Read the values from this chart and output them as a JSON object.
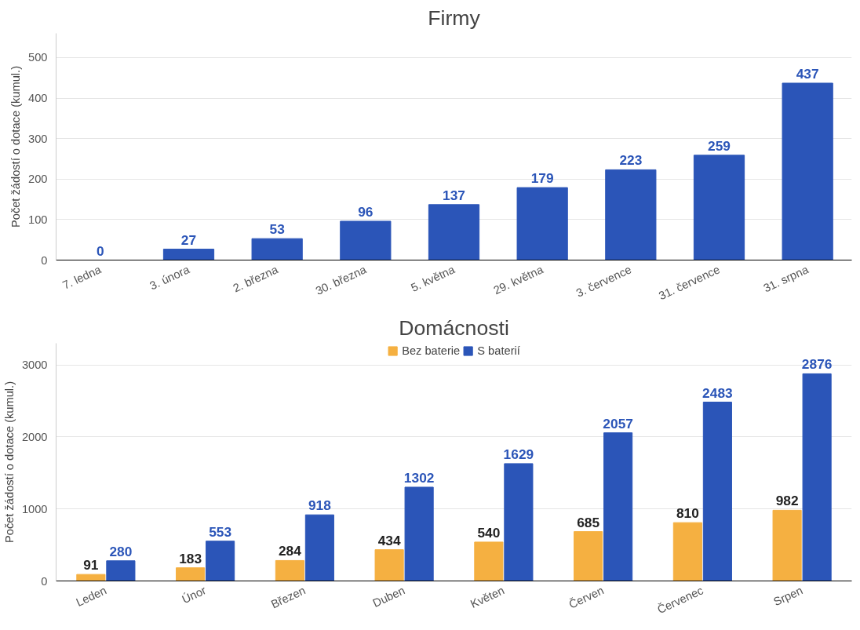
{
  "chart_data": [
    {
      "type": "bar",
      "title": "Firmy",
      "ylabel": "Počet žádostí o dotace (kumul.)",
      "categories": [
        "7. ledna",
        "3. února",
        "2. března",
        "30. března",
        "5. května",
        "29. května",
        "3. července",
        "31. července",
        "31. srpna"
      ],
      "series": [
        {
          "color": "#2b55b8",
          "values": [
            0,
            27,
            53,
            96,
            137,
            179,
            223,
            259,
            437
          ]
        }
      ],
      "ylim": [
        0,
        560
      ],
      "yticks": [
        0,
        100,
        200,
        300,
        400,
        500
      ],
      "grid": "y",
      "data_labels": true,
      "legend": false
    },
    {
      "type": "bar",
      "title": "Domácnosti",
      "ylabel": "Počet žádostí o dotace (kumul.)",
      "categories": [
        "Leden",
        "Únor",
        "Březen",
        "Duben",
        "Květen",
        "Červen",
        "Červenec",
        "Srpen"
      ],
      "series": [
        {
          "name": "Bez baterie",
          "color": "#f5b041",
          "values": [
            91,
            183,
            284,
            434,
            540,
            685,
            810,
            982
          ]
        },
        {
          "name": "S baterií",
          "color": "#2b55b8",
          "values": [
            280,
            553,
            918,
            1302,
            1629,
            2057,
            2483,
            2876
          ]
        }
      ],
      "ylim": [
        0,
        3300
      ],
      "yticks": [
        0,
        1000,
        2000,
        3000
      ],
      "grid": "y",
      "data_labels": true,
      "legend": "top"
    }
  ]
}
